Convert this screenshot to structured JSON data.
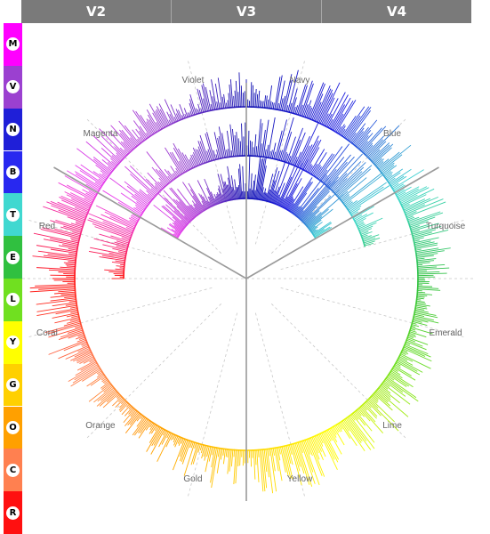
{
  "header": {
    "columns": [
      {
        "label": "V2"
      },
      {
        "label": "V3"
      },
      {
        "label": "V4"
      }
    ]
  },
  "sidebar": {
    "items": [
      {
        "letter": "M",
        "color": "#ff00ff"
      },
      {
        "letter": "V",
        "color": "#9b40d0"
      },
      {
        "letter": "N",
        "color": "#1f1fd8"
      },
      {
        "letter": "B",
        "color": "#2828f0"
      },
      {
        "letter": "T",
        "color": "#40d8d0"
      },
      {
        "letter": "E",
        "color": "#30c040"
      },
      {
        "letter": "L",
        "color": "#70e020"
      },
      {
        "letter": "Y",
        "color": "#ffff00"
      },
      {
        "letter": "G",
        "color": "#ffd000"
      },
      {
        "letter": "O",
        "color": "#ffa000"
      },
      {
        "letter": "C",
        "color": "#ff8050"
      },
      {
        "letter": "R",
        "color": "#ff1010"
      }
    ]
  },
  "chart_data": {
    "type": "radial-bar",
    "grid": true,
    "rings": [
      {
        "name": "V2",
        "arc": "Magenta clockwise to Blue"
      },
      {
        "name": "V3",
        "arc": "Red clockwise to Turquoise"
      },
      {
        "name": "V4",
        "arc": "full circle"
      }
    ],
    "sectors": [
      {
        "label": "Navy",
        "color": "#1010b0"
      },
      {
        "label": "Blue",
        "color": "#2020e0"
      },
      {
        "label": "Turquoise",
        "color": "#40d8d0"
      },
      {
        "label": "Emerald",
        "color": "#30c040"
      },
      {
        "label": "Lime",
        "color": "#70e020"
      },
      {
        "label": "Yellow",
        "color": "#ffff00"
      },
      {
        "label": "Gold",
        "color": "#ffd000"
      },
      {
        "label": "Orange",
        "color": "#ffa000"
      },
      {
        "label": "Coral",
        "color": "#ff8050"
      },
      {
        "label": "Red",
        "color": "#ff1010"
      },
      {
        "label": "Magenta",
        "color": "#ee40ee"
      },
      {
        "label": "Violet",
        "color": "#9b40d0"
      }
    ]
  }
}
